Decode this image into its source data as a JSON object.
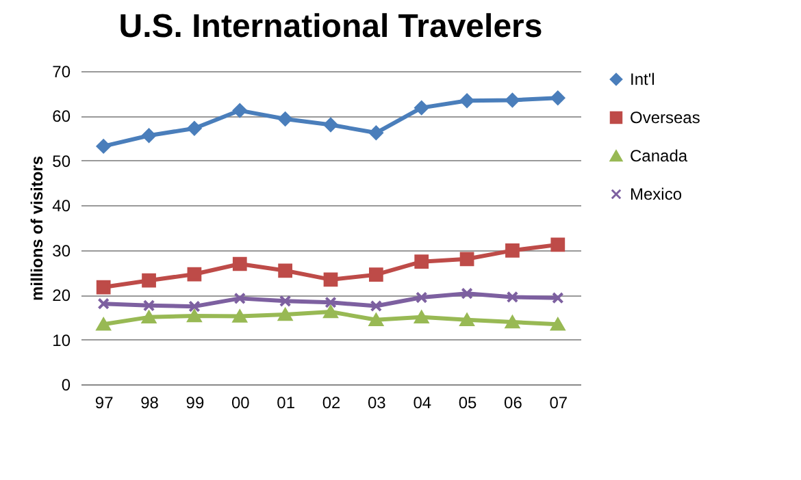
{
  "chart_data": {
    "type": "line",
    "title": "U.S. International Travelers",
    "ylabel": "millions of visitors",
    "categories": [
      "97",
      "98",
      "99",
      "00",
      "01",
      "02",
      "03",
      "04",
      "05",
      "06",
      "07"
    ],
    "series": [
      {
        "name": "Int'l",
        "color": "#4a7ebb",
        "marker": "diamond",
        "values": [
          53.2,
          55.6,
          57.2,
          61.2,
          59.3,
          58.0,
          56.2,
          61.8,
          63.4,
          63.5,
          64.0
        ]
      },
      {
        "name": "Overseas",
        "color": "#be4b48",
        "marker": "square",
        "values": [
          21.7,
          23.2,
          24.6,
          26.9,
          25.4,
          23.4,
          24.5,
          27.4,
          28.0,
          29.9,
          31.2
        ]
      },
      {
        "name": "Canada",
        "color": "#98b954",
        "marker": "triangle",
        "values": [
          13.4,
          15.0,
          15.3,
          15.2,
          15.6,
          16.2,
          14.4,
          15.0,
          14.4,
          13.9,
          13.4
        ]
      },
      {
        "name": "Mexico",
        "color": "#7d60a0",
        "marker": "cross",
        "values": [
          18.0,
          17.6,
          17.4,
          19.2,
          18.6,
          18.3,
          17.5,
          19.4,
          20.3,
          19.5,
          19.3
        ]
      }
    ],
    "ylim": [
      0,
      70
    ],
    "yticks": [
      0,
      10,
      20,
      30,
      40,
      50,
      60,
      70
    ],
    "grid": "y",
    "legend": "right"
  }
}
